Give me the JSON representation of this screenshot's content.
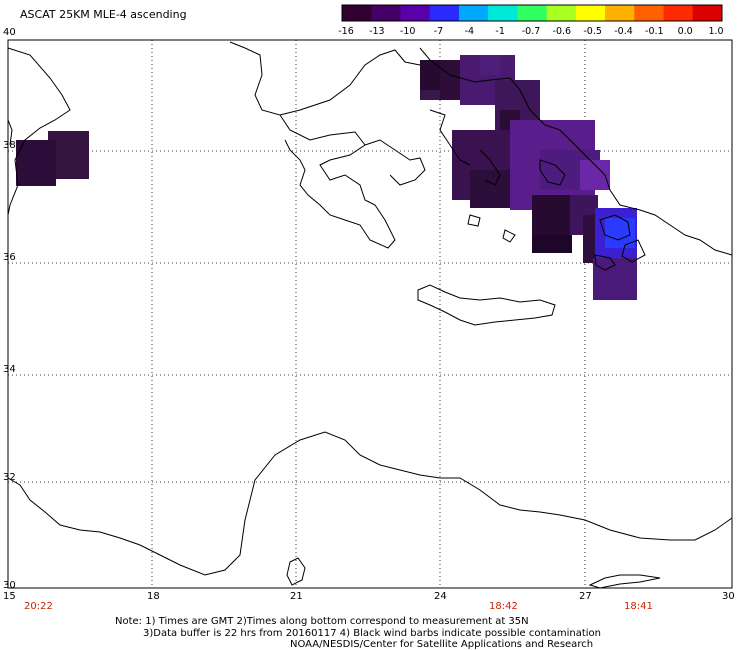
{
  "title": "ASCAT 25KM MLE-4 ascending",
  "colorbar": {
    "labels": [
      "-16",
      "-13",
      "-10",
      "-7",
      "-4",
      "-1",
      "-0.7",
      "-0.6",
      "-0.5",
      "-0.4",
      "-0.1",
      "0.0",
      "1.0"
    ],
    "colors": [
      "#300030",
      "#440066",
      "#5a00aa",
      "#2a2aff",
      "#00a8ff",
      "#00e8d8",
      "#30ff60",
      "#a8ff20",
      "#ffff00",
      "#ffb000",
      "#ff6000",
      "#ff2a00",
      "#dd0000"
    ]
  },
  "axes": {
    "lon_labels": [
      "15",
      "18",
      "21",
      "24",
      "27",
      "30"
    ],
    "lat_labels": [
      "40",
      "38",
      "36",
      "34",
      "32",
      "30"
    ]
  },
  "times": [
    "20:22",
    "18:42",
    "18:41"
  ],
  "notes": {
    "line1": "Note: 1) Times are GMT 2)Times along bottom correspond to measurement at 35N",
    "line2": "3)Data buffer is 22 hrs from 20160117 4) Black wind barbs indicate possible contamination",
    "line3": "NOAA/NESDIS/Center for Satellite Applications and Research"
  }
}
